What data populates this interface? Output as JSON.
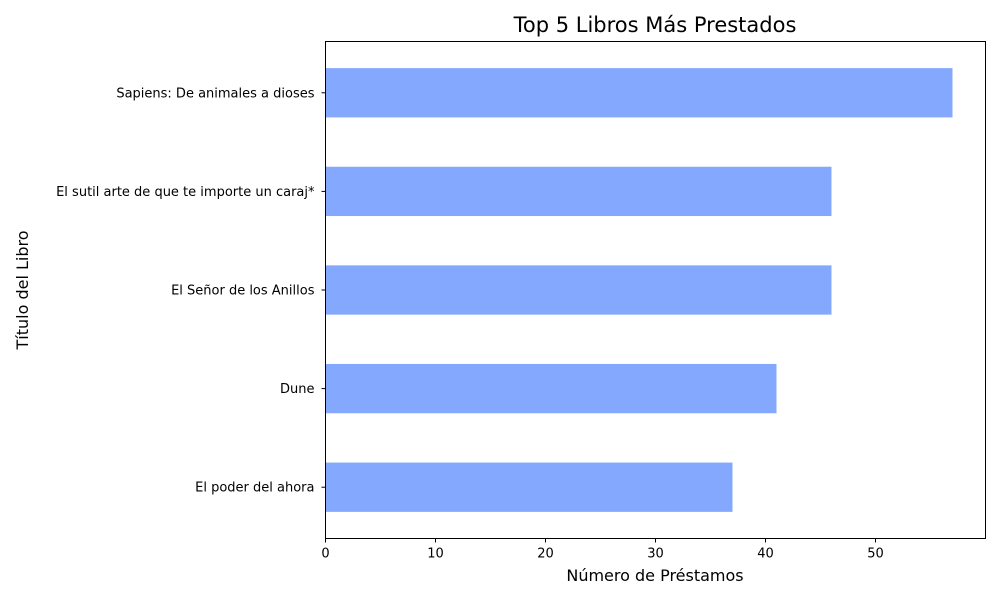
{
  "chart_data": {
    "type": "bar",
    "orientation": "horizontal",
    "title": "Top 5 Libros Más Prestados",
    "xlabel": "Número de Préstamos",
    "ylabel": "Título del Libro",
    "categories": [
      "Sapiens: De animales a dioses",
      "El sutil arte de que te importe un caraj*",
      "El Señor de los Anillos",
      "Dune",
      "El poder del ahora"
    ],
    "values": [
      57,
      46,
      46,
      41,
      37
    ],
    "xlim": [
      0,
      60
    ],
    "xticks": [
      0,
      10,
      20,
      30,
      40,
      50
    ],
    "grid": false,
    "bar_color": "#85a8ff"
  }
}
